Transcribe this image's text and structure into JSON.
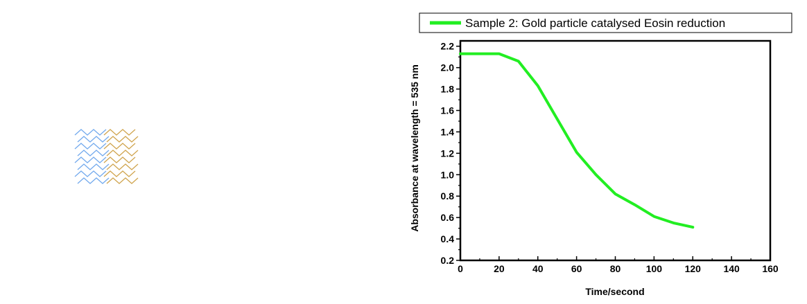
{
  "chart_data": {
    "type": "line",
    "title": "",
    "xlabel": "Time/second",
    "ylabel": "Absorbance at wavelength = 535 nm",
    "xlim": [
      0,
      160
    ],
    "ylim": [
      0.2,
      2.25
    ],
    "xticks": [
      0,
      20,
      40,
      60,
      80,
      100,
      120,
      140,
      160
    ],
    "yticks": [
      0.2,
      0.4,
      0.6,
      0.8,
      1.0,
      1.2,
      1.4,
      1.6,
      1.8,
      2.0,
      2.2
    ],
    "xtick_labels": [
      "0",
      "20",
      "40",
      "60",
      "80",
      "100",
      "120",
      "140",
      "160"
    ],
    "ytick_labels": [
      "0.2",
      "0.4",
      "0.6",
      "0.8",
      "1.0",
      "1.2",
      "1.4",
      "1.6",
      "1.8",
      "2.0",
      "2.2"
    ],
    "grid": false,
    "legend_position": "top",
    "series": [
      {
        "name": "Sample 2: Gold particle catalysed Eosin reduction",
        "color": "#22ee22",
        "x": [
          0,
          10,
          20,
          30,
          40,
          50,
          60,
          70,
          80,
          90,
          100,
          110,
          120
        ],
        "y": [
          2.13,
          2.13,
          2.13,
          2.06,
          1.83,
          1.52,
          1.21,
          1.0,
          0.82,
          0.72,
          0.61,
          0.55,
          0.51
        ]
      }
    ]
  },
  "molecule_graphic": {
    "icon": "molecular-structure-icon",
    "colors": [
      "#5b9bea",
      "#c89530"
    ]
  }
}
